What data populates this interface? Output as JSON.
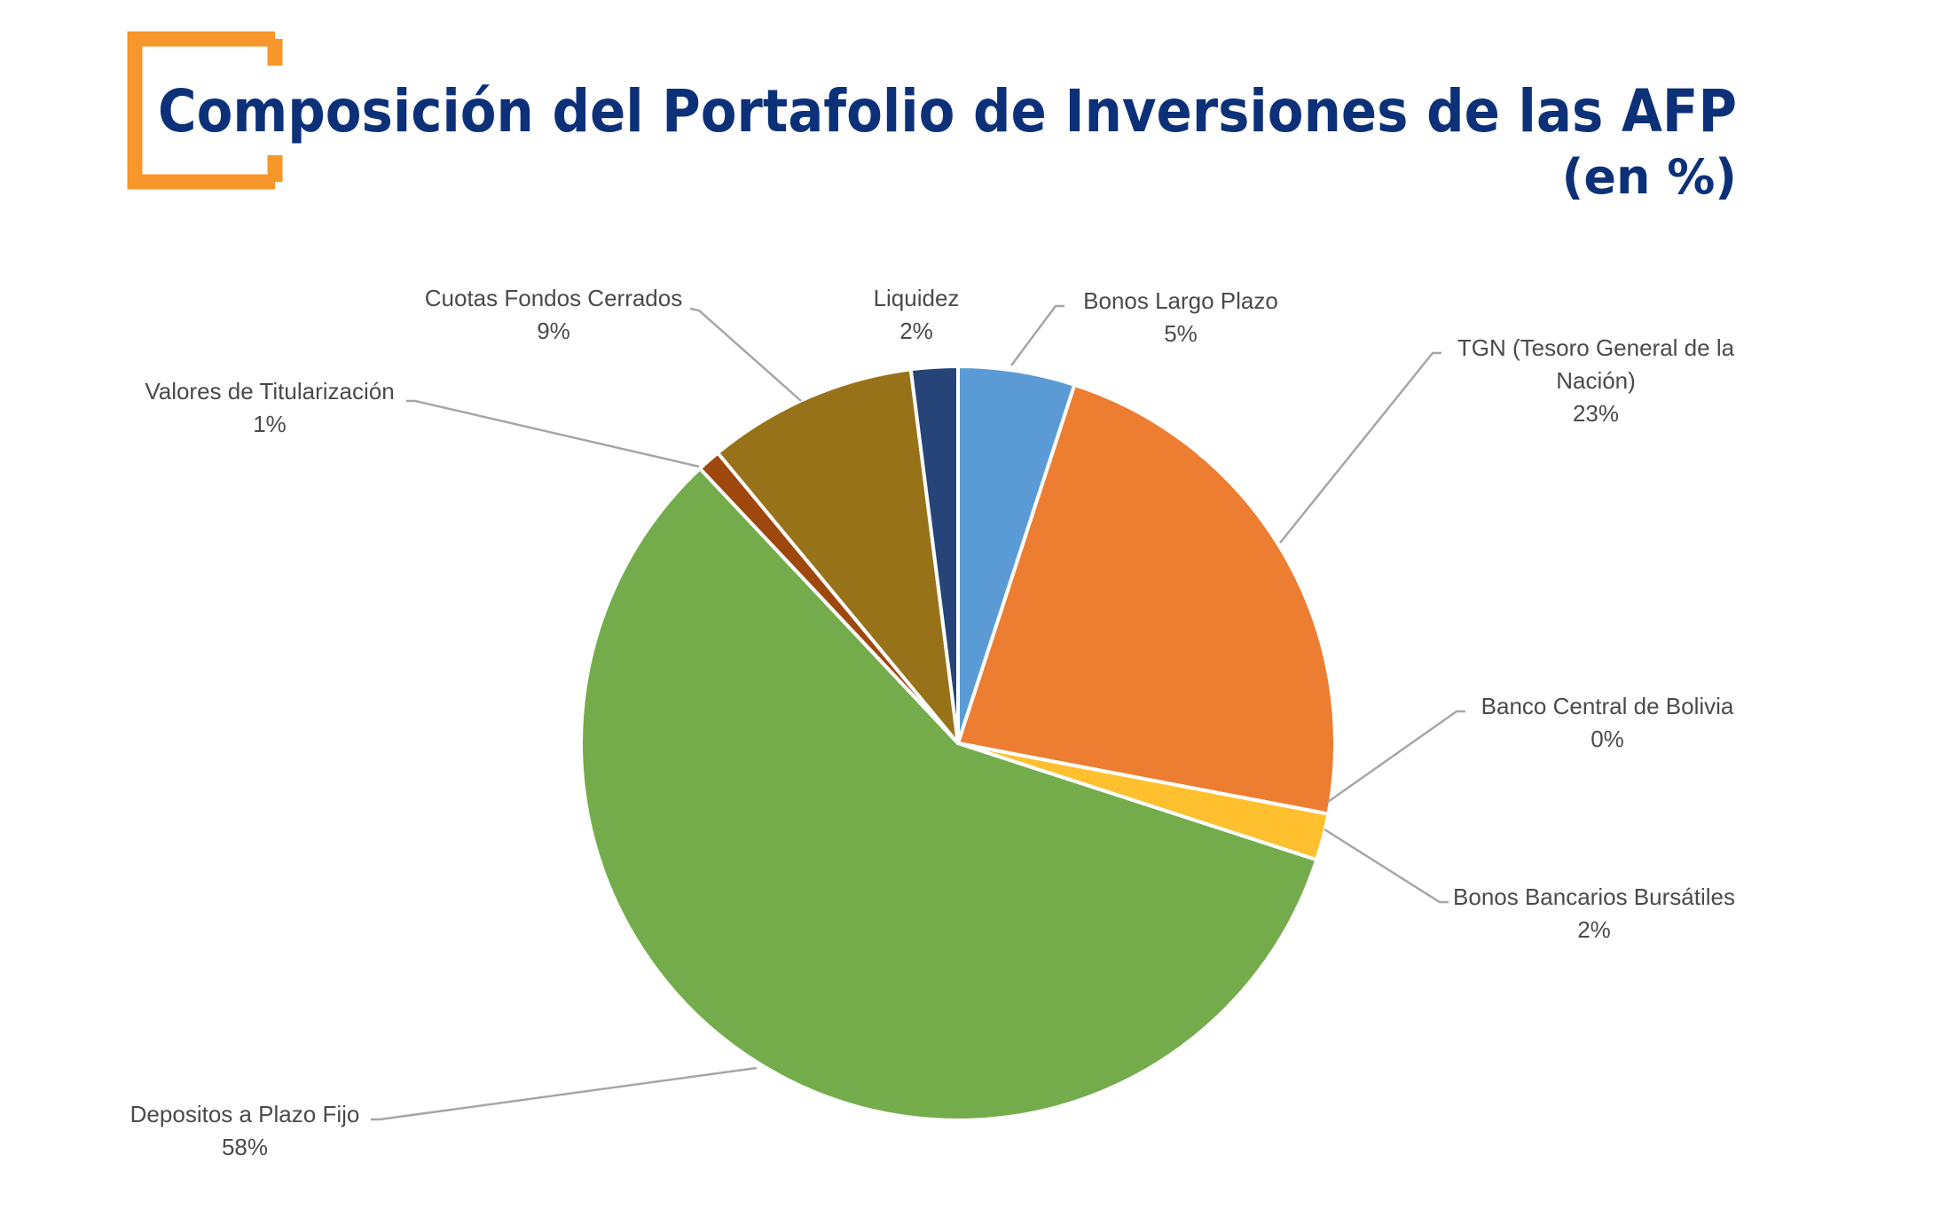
{
  "header": {
    "title": "Composición del Portafolio de Inversiones de las AFP",
    "subtitle": "(en %)",
    "title_color": "#0d3178",
    "bracket_color": "#f7962a"
  },
  "chart_data": {
    "type": "pie",
    "start_angle_deg": 0,
    "direction": "clockwise",
    "leader_line_color": "#a6a6a6",
    "label_color": "#4a4a4a",
    "slices": [
      {
        "label": "Bonos Largo Plazo",
        "value": 5,
        "display": "5%",
        "color": "#5b9bd5"
      },
      {
        "label": "TGN (Tesoro General de la Nación)",
        "label_lines": [
          "TGN (Tesoro General de la",
          "Nación)"
        ],
        "value": 23,
        "display": "23%",
        "color": "#ed7d31"
      },
      {
        "label": "Banco Central de Bolivia",
        "value": 0,
        "display": "0%",
        "color": "#a5a5a5"
      },
      {
        "label": "Bonos Bancarios Bursátiles",
        "value": 2,
        "display": "2%",
        "color": "#ffc02f"
      },
      {
        "label": "Depositos a Plazo Fijo",
        "value": 58,
        "display": "58%",
        "color": "#74ac4c"
      },
      {
        "label": "Valores de Titularización",
        "value": 1,
        "display": "1%",
        "color": "#9e480e"
      },
      {
        "label": "Cuotas Fondos Cerrados",
        "value": 9,
        "display": "9%",
        "color": "#977219"
      },
      {
        "label": "Liquidez",
        "value": 2,
        "display": "2%",
        "color": "#264478"
      }
    ]
  }
}
